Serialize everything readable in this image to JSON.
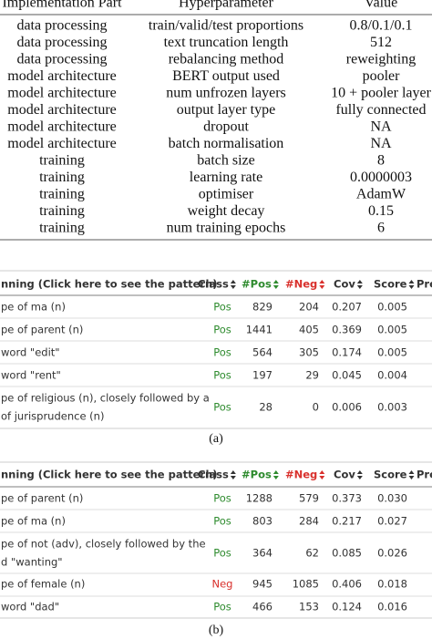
{
  "hyperparameter_table": {
    "columns": [
      "Implementation Part",
      "Hyperparameter",
      "Value"
    ],
    "rows": [
      [
        "data processing",
        "train/valid/test proportions",
        "0.8/0.1/0.1"
      ],
      [
        "data processing",
        "text truncation length",
        "512"
      ],
      [
        "data processing",
        "rebalancing method",
        "reweighting"
      ],
      [
        "model architecture",
        "BERT output used",
        "pooler"
      ],
      [
        "model architecture",
        "num unfrozen layers",
        "10 + pooler layer"
      ],
      [
        "model architecture",
        "output layer type",
        "fully connected"
      ],
      [
        "model architecture",
        "dropout",
        "NA"
      ],
      [
        "model architecture",
        "batch normalisation",
        "NA"
      ],
      [
        "training",
        "batch size",
        "8"
      ],
      [
        "training",
        "learning rate",
        "0.0000003"
      ],
      [
        "training",
        "optimiser",
        "AdamW"
      ],
      [
        "training",
        "weight decay",
        "0.15"
      ],
      [
        "training",
        "num training epochs",
        "6"
      ]
    ]
  },
  "pattern_tables": [
    {
      "columns": [
        "nning (Click here to see the pattern)",
        "Class",
        "#Pos",
        "#Neg",
        "Cov",
        "Score",
        "Pre"
      ],
      "rows": [
        {
          "pattern": [
            "pe of ma (n)"
          ],
          "class": "Pos",
          "pos": "829",
          "neg": "204",
          "cov": "0.207",
          "score": "0.005"
        },
        {
          "pattern": [
            "pe of parent (n)"
          ],
          "class": "Pos",
          "pos": "1441",
          "neg": "405",
          "cov": "0.369",
          "score": "0.005"
        },
        {
          "pattern": [
            "word \"edit\""
          ],
          "class": "Pos",
          "pos": "564",
          "neg": "305",
          "cov": "0.174",
          "score": "0.005"
        },
        {
          "pattern": [
            "word \"rent\""
          ],
          "class": "Pos",
          "pos": "197",
          "neg": "29",
          "cov": "0.045",
          "score": "0.004"
        },
        {
          "pattern": [
            "pe of religious (n), closely followed by a",
            "of jurisprudence (n)"
          ],
          "class": "Pos",
          "pos": "28",
          "neg": "0",
          "cov": "0.006",
          "score": "0.003"
        }
      ],
      "caption": "(a)"
    },
    {
      "columns": [
        "nning (Click here to see the pattern)",
        "Class",
        "#Pos",
        "#Neg",
        "Cov",
        "Score",
        "Pre"
      ],
      "rows": [
        {
          "pattern": [
            "pe of parent (n)"
          ],
          "class": "Pos",
          "pos": "1288",
          "neg": "579",
          "cov": "0.373",
          "score": "0.030"
        },
        {
          "pattern": [
            "pe of ma (n)"
          ],
          "class": "Pos",
          "pos": "803",
          "neg": "284",
          "cov": "0.217",
          "score": "0.027"
        },
        {
          "pattern": [
            "pe of not (adv), closely followed by the",
            "d \"wanting\""
          ],
          "class": "Pos",
          "pos": "364",
          "neg": "62",
          "cov": "0.085",
          "score": "0.026"
        },
        {
          "pattern": [
            "pe of female (n)"
          ],
          "class": "Neg",
          "pos": "945",
          "neg": "1085",
          "cov": "0.406",
          "score": "0.018"
        },
        {
          "pattern": [
            "word \"dad\""
          ],
          "class": "Pos",
          "pos": "466",
          "neg": "153",
          "cov": "0.124",
          "score": "0.016"
        }
      ],
      "caption": "(b)"
    }
  ]
}
